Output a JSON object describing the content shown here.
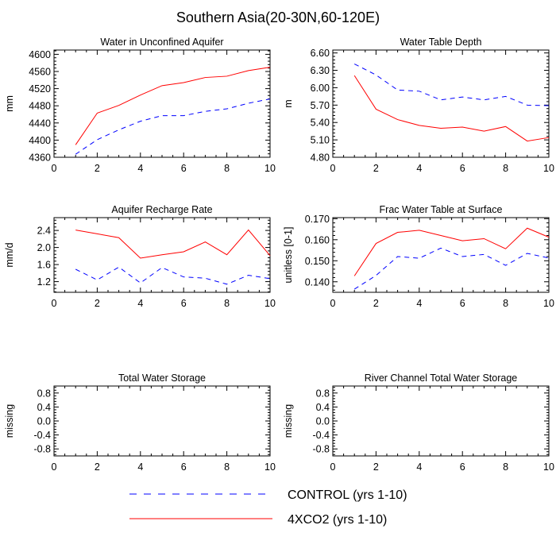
{
  "figure": {
    "title": "Southern Asia(20-30N,60-120E)",
    "colors": {
      "control": "#0000ff",
      "co2": "#ff0000",
      "axis": "#000000"
    }
  },
  "legend": {
    "control_label": "CONTROL (yrs 1-10)",
    "co2_label": "4XCO2 (yrs 1-10)"
  },
  "chart_data": [
    {
      "type": "line",
      "title": "Water in Unconfined Aquifer",
      "ylabel": "mm",
      "xlim": [
        0,
        10
      ],
      "ylim": [
        4360,
        4610
      ],
      "xticks": [
        0,
        2,
        4,
        6,
        8,
        10
      ],
      "yticks": [
        4360,
        4400,
        4440,
        4480,
        4520,
        4560,
        4600
      ],
      "ytick_labels": [
        "4360",
        "4400",
        "4440",
        "4480",
        "4520",
        "4560",
        "4600"
      ],
      "x": [
        1,
        2,
        3,
        4,
        5,
        6,
        7,
        8,
        9,
        10
      ],
      "series": [
        {
          "name": "CONTROL (yrs 1-10)",
          "style": "dashed",
          "values": [
            4367,
            4401,
            4424,
            4444,
            4457,
            4457,
            4467,
            4473,
            4486,
            4496
          ]
        },
        {
          "name": "4XCO2 (yrs 1-10)",
          "style": "solid",
          "values": [
            4389,
            4463,
            4481,
            4505,
            4527,
            4534,
            4546,
            4549,
            4562,
            4570
          ]
        }
      ]
    },
    {
      "type": "line",
      "title": "Water Table Depth",
      "ylabel": "m",
      "xlim": [
        0,
        10
      ],
      "ylim": [
        4.8,
        6.65
      ],
      "xticks": [
        0,
        2,
        4,
        6,
        8,
        10
      ],
      "yticks": [
        4.8,
        5.1,
        5.4,
        5.7,
        6.0,
        6.3,
        6.6
      ],
      "ytick_labels": [
        "4.80",
        "5.10",
        "5.40",
        "5.70",
        "6.00",
        "6.30",
        "6.60"
      ],
      "x": [
        1,
        2,
        3,
        4,
        5,
        6,
        7,
        8,
        9,
        10
      ],
      "series": [
        {
          "name": "CONTROL (yrs 1-10)",
          "style": "dashed",
          "values": [
            6.41,
            6.22,
            5.96,
            5.94,
            5.79,
            5.84,
            5.79,
            5.85,
            5.7,
            5.69
          ]
        },
        {
          "name": "4XCO2 (yrs 1-10)",
          "style": "solid",
          "values": [
            6.21,
            5.63,
            5.45,
            5.35,
            5.3,
            5.32,
            5.25,
            5.33,
            5.08,
            5.14
          ]
        }
      ]
    },
    {
      "type": "line",
      "title": "Aquifer Recharge Rate",
      "ylabel": "mm/d",
      "xlim": [
        0,
        10
      ],
      "ylim": [
        0.95,
        2.7
      ],
      "xticks": [
        0,
        2,
        4,
        6,
        8,
        10
      ],
      "yticks": [
        1.2,
        1.6,
        2.0,
        2.4
      ],
      "ytick_labels": [
        "1.2",
        "1.6",
        "2.0",
        "2.4"
      ],
      "x": [
        1,
        2,
        3,
        4,
        5,
        6,
        7,
        8,
        9,
        10
      ],
      "series": [
        {
          "name": "CONTROL (yrs 1-10)",
          "style": "dashed",
          "values": [
            1.49,
            1.24,
            1.54,
            1.17,
            1.53,
            1.31,
            1.28,
            1.14,
            1.35,
            1.27
          ]
        },
        {
          "name": "4XCO2 (yrs 1-10)",
          "style": "solid",
          "values": [
            2.41,
            2.32,
            2.23,
            1.75,
            1.83,
            1.9,
            2.13,
            1.83,
            2.41,
            1.81
          ]
        }
      ]
    },
    {
      "type": "line",
      "title": "Frac Water Table at Surface",
      "ylabel": "unitless [0-1]",
      "xlim": [
        0,
        10
      ],
      "ylim": [
        0.135,
        0.1705
      ],
      "xticks": [
        0,
        2,
        4,
        6,
        8,
        10
      ],
      "yticks": [
        0.14,
        0.15,
        0.16,
        0.17
      ],
      "ytick_labels": [
        "0.140",
        "0.150",
        "0.160",
        "0.170"
      ],
      "x": [
        1,
        2,
        3,
        4,
        5,
        6,
        7,
        8,
        9,
        10
      ],
      "series": [
        {
          "name": "CONTROL (yrs 1-10)",
          "style": "dashed",
          "values": [
            0.1365,
            0.143,
            0.152,
            0.1512,
            0.156,
            0.152,
            0.153,
            0.1478,
            0.1535,
            0.1513
          ]
        },
        {
          "name": "4XCO2 (yrs 1-10)",
          "style": "solid",
          "values": [
            0.1428,
            0.1582,
            0.1635,
            0.1645,
            0.162,
            0.1595,
            0.1605,
            0.1557,
            0.1655,
            0.1612
          ]
        }
      ]
    },
    {
      "type": "line",
      "title": "Total Water Storage",
      "ylabel": "missing",
      "xlim": [
        0,
        10
      ],
      "ylim": [
        -1,
        1
      ],
      "xticks": [
        0,
        2,
        4,
        6,
        8,
        10
      ],
      "yticks": [
        -0.8,
        -0.4,
        0.0,
        0.4,
        0.8
      ],
      "ytick_labels": [
        "-0.8",
        "-0.4",
        "0.0",
        "0.4",
        "0.8"
      ],
      "x": [],
      "series": []
    },
    {
      "type": "line",
      "title": "River Channel Total Water Storage",
      "ylabel": "missing",
      "xlim": [
        0,
        10
      ],
      "ylim": [
        -1,
        1
      ],
      "xticks": [
        0,
        2,
        4,
        6,
        8,
        10
      ],
      "yticks": [
        -0.8,
        -0.4,
        0.0,
        0.4,
        0.8
      ],
      "ytick_labels": [
        "-0.8",
        "-0.4",
        "0.0",
        "0.4",
        "0.8"
      ],
      "x": [],
      "series": []
    }
  ]
}
